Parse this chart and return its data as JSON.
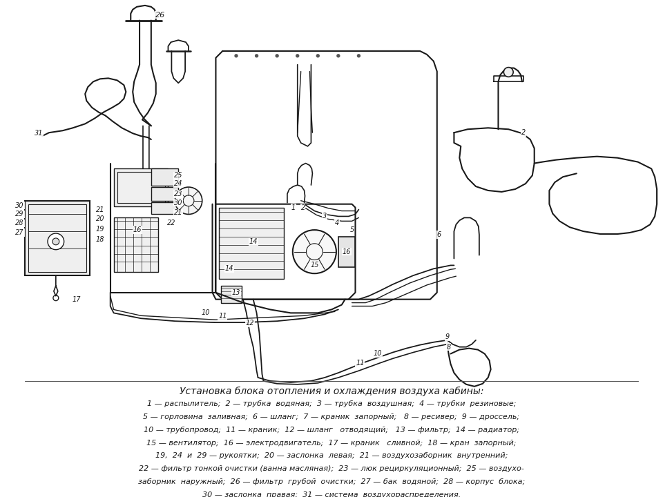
{
  "title": "Установка блока отопления и охлаждения воздуха кабины:",
  "legend_lines": [
    "1 — распылитель;  2 — трубка  водяная;  3 — трубка  воздушная;  4 — трубки  резиновые;",
    "5 — горловина  заливная;  6 — шланг;  7 — краник  запорный;   8 — ресивер;  9 — дроссель;",
    "10 — трубопровод;  11 — краник;  12 — шланг   отводящий;   13 — фильтр;  14 — радиатор;",
    "15 — вентилятор;  16 — электродвигатель;  17 — краник   сливной;  18 — кран  запорный;",
    "19,  24  и  29 — рукоятки;  20 — заслонка  левая;  21 — воздухозаборник  внутренний;",
    "22 — фильтр тонкой очистки (ванна масляная);  23 — люк рециркуляционный;  25 — воздухо-",
    "заборник  наружный;  26 — фильтр  грубой  очистки;  27 — бак  водяной;  28 — корпус  блока;",
    "30 — заслонка  правая;  31 — система  воздухораспределения."
  ],
  "bg_color": "#ffffff",
  "line_color": "#1a1a1a",
  "text_color": "#1a1a1a",
  "lw": 1.2
}
